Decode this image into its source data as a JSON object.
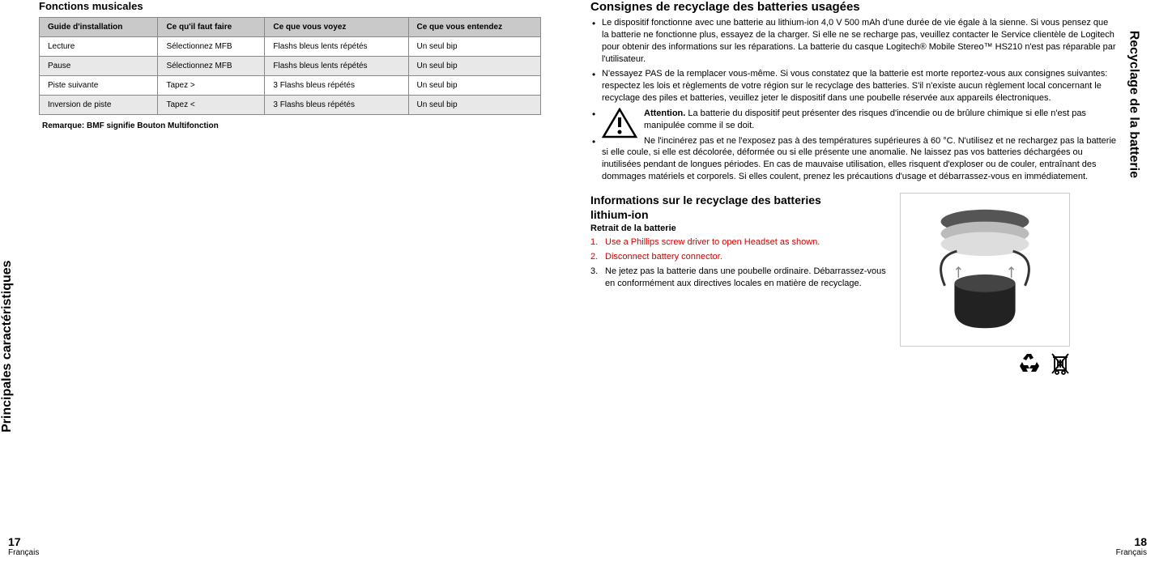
{
  "left": {
    "vertical_label": "Principales caractéristiques",
    "page_num": "17",
    "page_lang": "Français",
    "section_title": "Fonctions musicales",
    "table": {
      "headers": [
        "Guide d'installation",
        "Ce qu'il faut faire",
        "Ce que vous voyez",
        "Ce que vous entendez"
      ],
      "rows": [
        [
          "Lecture",
          "Sélectionnez MFB",
          "Flashs bleus lents répétés",
          "Un seul bip"
        ],
        [
          "Pause",
          "Sélectionnez MFB",
          "Flashs bleus lents répétés",
          "Un seul bip"
        ],
        [
          "Piste suivante",
          "Tapez >",
          "3 Flashs bleus répétés",
          "Un seul bip"
        ],
        [
          "Inversion de piste",
          "Tapez <",
          "3 Flashs bleus répétés",
          "Un seul bip"
        ]
      ]
    },
    "table_note": "Remarque: BMF signifie Bouton Multifonction"
  },
  "right": {
    "vertical_label": "Recyclage de la batterie",
    "page_num": "18",
    "page_lang": "Français",
    "heading1": "Consignes de recyclage des batteries usagées",
    "bullets": [
      "Le dispositif fonctionne avec une batterie au lithium-ion 4,0 V 500 mAh d'une durée de vie égale à la sienne. Si vous pensez que la batterie ne fonctionne plus, essayez de la charger. Si elle ne se recharge pas, veuillez contacter le Service clientèle de Logitech pour obtenir des informations sur les réparations. La batterie du casque Logitech® Mobile Stereo™ HS210 n'est pas réparable par l'utilisateur.",
      "N'essayez PAS de la remplacer vous-même. Si vous constatez que la batterie est morte reportez-vous aux consignes suivantes: respectez les lois et règlements de votre région sur le recyclage des batteries. S'il n'existe aucun règlement local concernant le recyclage des piles et batteries, veuillez jeter le dispositif dans une poubelle réservée aux appareils électroniques."
    ],
    "attention_label": "Attention.",
    "bullet3_after_bold": " La batterie du dispositif peut présenter des risques d'incendie ou de brûlure chimique si elle n'est pas manipulée comme il se doit.",
    "bullet4": "Ne l'incinérez pas et ne l'exposez pas à des températures supérieures à 60 °C. N'utilisez et ne rechargez pas la batterie si elle coule, si elle est décolorée, déformée ou si elle présente une anomalie. Ne laissez pas vos batteries déchargées ou inutilisées pendant de longues périodes. En cas de mauvaise utilisation, elles risquent d'exploser ou de couler, entraînant des dommages matériels et corporels. Si elles coulent, prenez les précautions d'usage et débarrassez-vous en immédiatement.",
    "heading2_line1": "Informations sur le recyclage des batteries",
    "heading2_line2": "lithium-ion",
    "subheading": "Retrait de la batterie",
    "steps": [
      "Use a Phillips screw driver to open Headset as shown.",
      "Disconnect battery connector.",
      "Ne jetez pas la batterie dans une poubelle ordinaire. Débarrassez-vous en conformément aux directives locales en matière de recyclage."
    ],
    "step_red_flags": [
      true,
      true,
      false
    ]
  }
}
